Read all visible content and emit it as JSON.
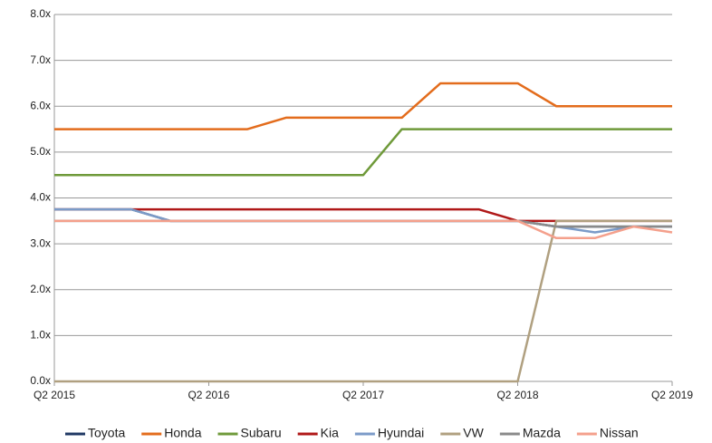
{
  "chart_data": {
    "type": "line",
    "categories": [
      "Q2 2015",
      null,
      null,
      null,
      "Q2 2016",
      null,
      null,
      null,
      "Q2 2017",
      null,
      null,
      null,
      "Q2 2018",
      null,
      null,
      null,
      "Q2 2019"
    ],
    "series": [
      {
        "name": "Toyota",
        "color": "#1f3864",
        "values": [
          3.75,
          3.75,
          3.75,
          3.5,
          3.5,
          3.5,
          3.5,
          3.5,
          3.5,
          3.5,
          3.5,
          3.5,
          3.5,
          3.375,
          3.375,
          3.375,
          3.375
        ]
      },
      {
        "name": "Honda",
        "color": "#e36c1c",
        "values": [
          5.5,
          5.5,
          5.5,
          5.5,
          5.5,
          5.5,
          5.75,
          5.75,
          5.75,
          5.75,
          6.5,
          6.5,
          6.5,
          6,
          6,
          6,
          6
        ]
      },
      {
        "name": "Subaru",
        "color": "#6f9a3a",
        "values": [
          4.5,
          4.5,
          4.5,
          4.5,
          4.5,
          4.5,
          4.5,
          4.5,
          4.5,
          5.5,
          5.5,
          5.5,
          5.5,
          5.5,
          5.5,
          5.5,
          5.5
        ]
      },
      {
        "name": "Kia",
        "color": "#b01818",
        "values": [
          3.75,
          3.75,
          3.75,
          3.75,
          3.75,
          3.75,
          3.75,
          3.75,
          3.75,
          3.75,
          3.75,
          3.75,
          3.5,
          3.5,
          3.5,
          3.5,
          3.5
        ]
      },
      {
        "name": "Hyundai",
        "color": "#7b9bc8",
        "values": [
          3.75,
          3.75,
          3.75,
          3.5,
          3.5,
          3.5,
          3.5,
          3.5,
          3.5,
          3.5,
          3.5,
          3.5,
          3.5,
          3.375,
          3.25,
          3.375,
          3.375
        ]
      },
      {
        "name": "VW",
        "color": "#b0a080",
        "values": [
          0,
          0,
          0,
          0,
          0,
          0,
          0,
          0,
          0,
          0,
          0,
          0,
          0,
          3.5,
          3.5,
          3.5,
          3.5
        ]
      },
      {
        "name": "Mazda",
        "color": "#8a8a8a",
        "values": [
          3.5,
          3.5,
          3.5,
          3.5,
          3.5,
          3.5,
          3.5,
          3.5,
          3.5,
          3.5,
          3.5,
          3.5,
          3.5,
          3.375,
          3.375,
          3.375,
          3.375
        ]
      },
      {
        "name": "Nissan",
        "color": "#f4a08c",
        "values": [
          3.5,
          3.5,
          3.5,
          3.5,
          3.5,
          3.5,
          3.5,
          3.5,
          3.5,
          3.5,
          3.5,
          3.5,
          3.5,
          3.125,
          3.125,
          3.375,
          3.25
        ]
      }
    ],
    "ylim": [
      0,
      8
    ],
    "yticks": [
      {
        "value": 0,
        "label": "0.0x"
      },
      {
        "value": 1,
        "label": "1.0x"
      },
      {
        "value": 2,
        "label": "2.0x"
      },
      {
        "value": 3,
        "label": "3.0x"
      },
      {
        "value": 4,
        "label": "4.0x"
      },
      {
        "value": 5,
        "label": "5.0x"
      },
      {
        "value": 6,
        "label": "6.0x"
      },
      {
        "value": 7,
        "label": "7.0x"
      },
      {
        "value": 8,
        "label": "8.0x"
      }
    ],
    "grid": true,
    "legend": "bottom"
  }
}
